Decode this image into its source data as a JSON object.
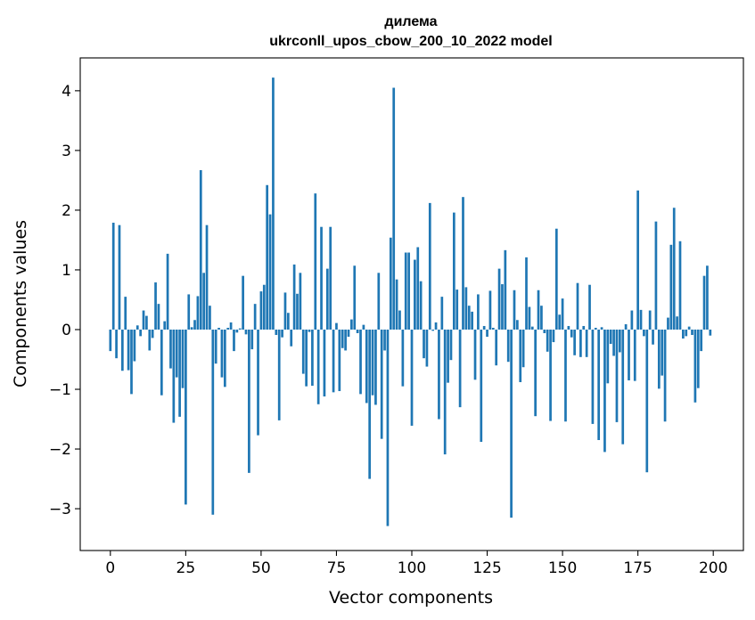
{
  "chart_data": {
    "type": "bar",
    "title": "дилема",
    "subtitle": "ukrconll_upos_cbow_200_10_2022 model",
    "xlabel": "Vector components",
    "ylabel": "Components values",
    "xlim": [
      -10,
      210
    ],
    "ylim": [
      -3.7,
      4.55
    ],
    "xticks": [
      0,
      25,
      50,
      75,
      100,
      125,
      150,
      175,
      200
    ],
    "xtick_labels": [
      "0",
      "25",
      "50",
      "75",
      "100",
      "125",
      "150",
      "175",
      "200"
    ],
    "yticks": [
      -3,
      -2,
      -1,
      0,
      1,
      2,
      3,
      4
    ],
    "ytick_labels": [
      "−3",
      "−2",
      "−1",
      "0",
      "1",
      "2",
      "3",
      "4"
    ],
    "bar_color": "#1f77b4",
    "x": [
      0,
      1,
      2,
      3,
      4,
      5,
      6,
      7,
      8,
      9,
      10,
      11,
      12,
      13,
      14,
      15,
      16,
      17,
      18,
      19,
      20,
      21,
      22,
      23,
      24,
      25,
      26,
      27,
      28,
      29,
      30,
      31,
      32,
      33,
      34,
      35,
      36,
      37,
      38,
      39,
      40,
      41,
      42,
      43,
      44,
      45,
      46,
      47,
      48,
      49,
      50,
      51,
      52,
      53,
      54,
      55,
      56,
      57,
      58,
      59,
      60,
      61,
      62,
      63,
      64,
      65,
      66,
      67,
      68,
      69,
      70,
      71,
      72,
      73,
      74,
      75,
      76,
      77,
      78,
      79,
      80,
      81,
      82,
      83,
      84,
      85,
      86,
      87,
      88,
      89,
      90,
      91,
      92,
      93,
      94,
      95,
      96,
      97,
      98,
      99,
      100,
      101,
      102,
      103,
      104,
      105,
      106,
      107,
      108,
      109,
      110,
      111,
      112,
      113,
      114,
      115,
      116,
      117,
      118,
      119,
      120,
      121,
      122,
      123,
      124,
      125,
      126,
      127,
      128,
      129,
      130,
      131,
      132,
      133,
      134,
      135,
      136,
      137,
      138,
      139,
      140,
      141,
      142,
      143,
      144,
      145,
      146,
      147,
      148,
      149,
      150,
      151,
      152,
      153,
      154,
      155,
      156,
      157,
      158,
      159,
      160,
      161,
      162,
      163,
      164,
      165,
      166,
      167,
      168,
      169,
      170,
      171,
      172,
      173,
      174,
      175,
      176,
      177,
      178,
      179,
      180,
      181,
      182,
      183,
      184,
      185,
      186,
      187,
      188,
      189,
      190,
      191,
      192,
      193,
      194,
      195,
      196,
      197,
      198,
      199
    ],
    "values": [
      -0.36,
      1.79,
      -0.48,
      1.75,
      -0.69,
      0.55,
      -0.68,
      -1.08,
      -0.53,
      0.07,
      -0.11,
      0.32,
      0.23,
      -0.35,
      -0.14,
      0.79,
      0.43,
      -1.1,
      0.14,
      1.27,
      -0.65,
      -1.56,
      -0.8,
      -1.46,
      -0.98,
      -2.93,
      0.59,
      0.04,
      0.16,
      0.56,
      2.67,
      0.95,
      1.75,
      0.4,
      -3.1,
      -0.57,
      0.03,
      -0.8,
      -0.96,
      0.03,
      0.12,
      -0.36,
      -0.05,
      0.02,
      0.9,
      -0.08,
      -2.4,
      -0.33,
      0.43,
      -1.77,
      0.64,
      0.75,
      2.42,
      1.93,
      4.22,
      -0.09,
      -1.52,
      -0.13,
      0.62,
      0.28,
      -0.28,
      1.09,
      0.6,
      0.95,
      -0.74,
      -0.95,
      -0.04,
      -0.94,
      2.28,
      -1.25,
      1.72,
      -1.12,
      1.02,
      1.72,
      -1.05,
      0.11,
      -1.03,
      -0.31,
      -0.35,
      -0.12,
      0.17,
      1.07,
      -0.06,
      -1.08,
      0.08,
      -1.23,
      -2.5,
      -1.1,
      -1.26,
      0.95,
      -1.83,
      -0.35,
      -3.29,
      1.54,
      4.05,
      0.84,
      0.32,
      -0.95,
      1.29,
      1.29,
      -1.61,
      1.17,
      1.38,
      0.81,
      -0.48,
      -0.62,
      2.12,
      -0.02,
      0.12,
      -1.5,
      0.55,
      -2.09,
      -0.89,
      -0.51,
      1.96,
      0.67,
      -1.3,
      2.22,
      0.71,
      0.4,
      0.3,
      -0.84,
      0.59,
      -1.88,
      0.06,
      -0.12,
      0.65,
      0.03,
      -0.6,
      1.02,
      0.76,
      1.33,
      -0.54,
      -3.15,
      0.66,
      0.16,
      -0.88,
      -0.63,
      1.21,
      0.38,
      0.05,
      -1.45,
      0.66,
      0.4,
      -0.06,
      -0.37,
      -1.53,
      -0.21,
      1.69,
      0.25,
      0.52,
      -1.54,
      0.06,
      -0.13,
      -0.43,
      0.78,
      -0.46,
      0.06,
      -0.46,
      0.75,
      -1.58,
      0.03,
      -1.85,
      0.04,
      -2.05,
      -0.9,
      -0.24,
      -0.44,
      -1.55,
      -0.38,
      -1.92,
      0.09,
      -0.85,
      0.32,
      -0.86,
      2.33,
      0.33,
      -0.11,
      -2.39,
      0.32,
      -0.25,
      1.81,
      -0.99,
      -0.77,
      -1.54,
      0.2,
      1.42,
      2.04,
      0.22,
      1.48,
      -0.15,
      -0.11,
      0.05,
      -0.09,
      -1.22,
      -0.98,
      -0.36,
      0.9,
      1.07,
      -0.1
    ]
  }
}
